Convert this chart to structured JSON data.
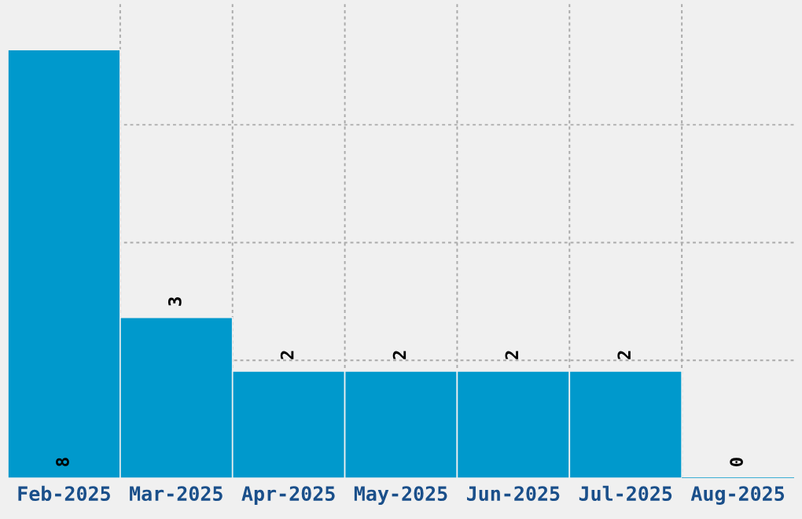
{
  "chart_data": {
    "type": "bar",
    "categories": [
      "Feb-2025",
      "Mar-2025",
      "Apr-2025",
      "May-2025",
      "Jun-2025",
      "Jul-2025",
      "Aug-2025"
    ],
    "values": [
      8,
      3,
      2,
      2,
      2,
      2,
      0
    ],
    "color": "#0099cc",
    "ylim": [
      0,
      8.9
    ],
    "yticks": [
      {
        "value": 2.2,
        "label": null
      },
      {
        "value": 4.4,
        "label": null
      },
      {
        "value": 6.6,
        "label": null
      }
    ],
    "tick_labels": "x",
    "grid": true,
    "data_labels": true
  }
}
